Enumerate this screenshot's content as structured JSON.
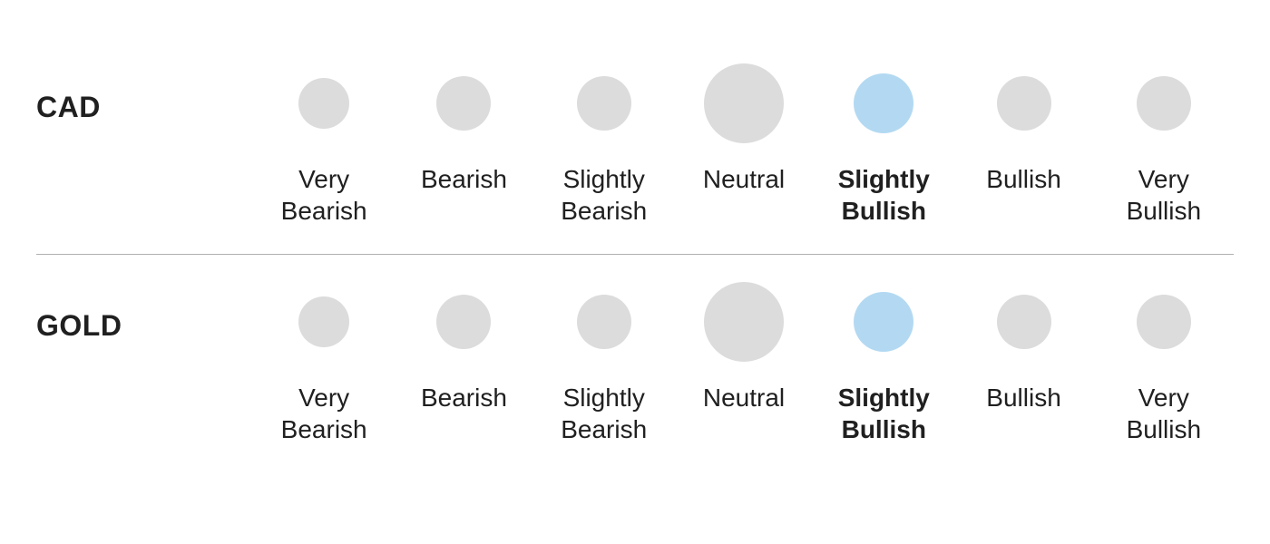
{
  "chart": {
    "type": "sentiment-scale",
    "background_color": "#ffffff",
    "inactive_dot_color": "#dcdcdc",
    "active_dot_color": "#b3d9f2",
    "text_color": "#202020",
    "label_fontsize": 28,
    "asset_label_fontsize": 32,
    "divider_color": "#b0b0b0",
    "divider_width": 1,
    "dot_base_size": 56,
    "dot_neutral_size": 88,
    "scale": [
      {
        "key": "very_bearish",
        "label": "Very\nBearish",
        "size": 56
      },
      {
        "key": "bearish",
        "label": "Bearish",
        "size": 60
      },
      {
        "key": "slightly_bearish",
        "label": "Slightly\nBearish",
        "size": 60
      },
      {
        "key": "neutral",
        "label": "Neutral",
        "size": 88
      },
      {
        "key": "slightly_bullish",
        "label": "Slightly\nBullish",
        "size": 66
      },
      {
        "key": "bullish",
        "label": "Bullish",
        "size": 60
      },
      {
        "key": "very_bullish",
        "label": "Very\nBullish",
        "size": 60
      }
    ],
    "rows": [
      {
        "asset": "CAD",
        "selected": "slightly_bullish"
      },
      {
        "asset": "GOLD",
        "selected": "slightly_bullish"
      }
    ]
  }
}
